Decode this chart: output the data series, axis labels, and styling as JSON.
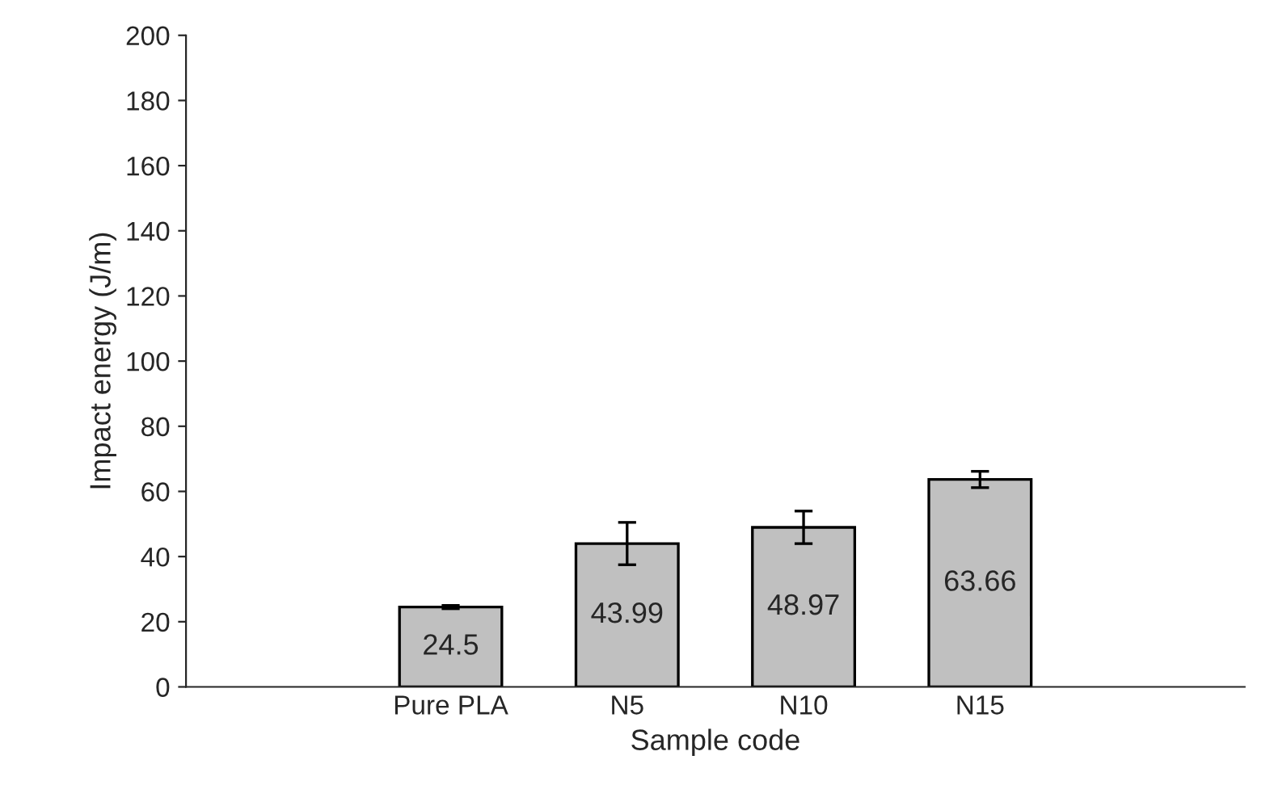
{
  "chart_data": {
    "type": "bar",
    "xlabel": "Sample code",
    "ylabel": "Impact energy (J/m)",
    "categories": [
      null,
      "Pure PLA",
      "N5",
      "N10",
      "N15",
      null
    ],
    "values": [
      null,
      24.5,
      43.99,
      48.97,
      63.66,
      null
    ],
    "errors": [
      null,
      0.5,
      6.5,
      5,
      2.5,
      null
    ],
    "color": "#c0c0c0",
    "data_labels": true,
    "ylim": [
      0,
      200
    ],
    "yticks": [
      0,
      20,
      40,
      60,
      80,
      100,
      120,
      140,
      160,
      180,
      200
    ],
    "grid": false
  }
}
